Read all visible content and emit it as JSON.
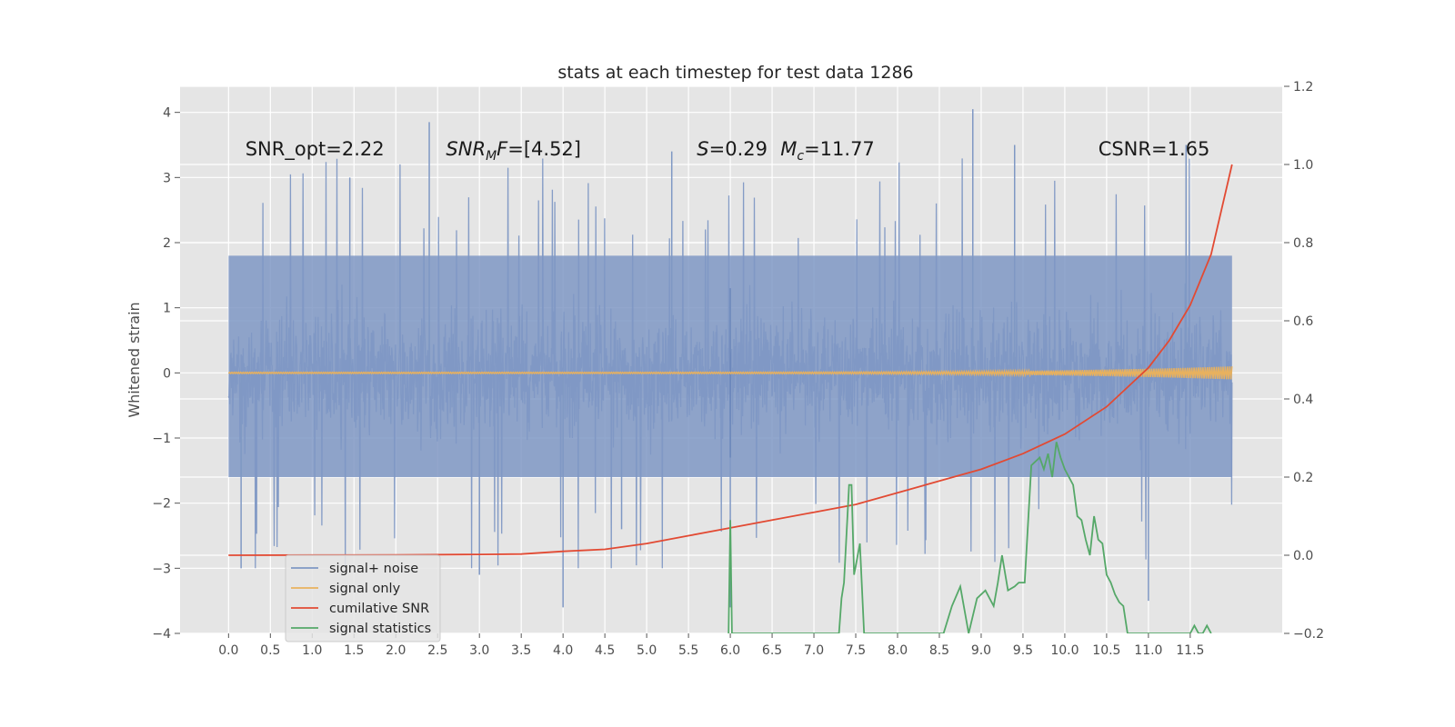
{
  "chart_data": {
    "type": "line",
    "title": "stats at each timestep for test data 1286",
    "xlabel": "",
    "ylabel": "Whitened strain",
    "xlim": [
      -0.58,
      12.6
    ],
    "ylim": [
      -4,
      4.4
    ],
    "y2lim": [
      -0.2,
      1.2
    ],
    "xticks": [
      0.0,
      0.5,
      1.0,
      1.5,
      2.0,
      2.5,
      3.0,
      3.5,
      4.0,
      4.5,
      5.0,
      5.5,
      6.0,
      6.5,
      7.0,
      7.5,
      8.0,
      8.5,
      9.0,
      9.5,
      10.0,
      10.5,
      11.0,
      11.5
    ],
    "xtick_labels": [
      "0.0",
      "0.5",
      "1.0",
      "1.5",
      "2.0",
      "2.5",
      "3.0",
      "3.5",
      "4.0",
      "4.5",
      "5.0",
      "5.5",
      "6.0",
      "6.5",
      "7.0",
      "7.5",
      "8.0",
      "8.5",
      "9.0",
      "9.5",
      "10.0",
      "10.5",
      "11.0",
      "11.5"
    ],
    "yticks": [
      -4,
      -3,
      -2,
      -1,
      0,
      1,
      2,
      3,
      4
    ],
    "ytick_labels": [
      "−4",
      "−3",
      "−2",
      "−1",
      "0",
      "1",
      "2",
      "3",
      "4"
    ],
    "y2ticks": [
      -0.2,
      0.0,
      0.2,
      0.4,
      0.6,
      0.8,
      1.0,
      1.2
    ],
    "y2tick_labels": [
      "−0.2",
      "0.0",
      "0.2",
      "0.4",
      "0.6",
      "0.8",
      "1.0",
      "1.2"
    ],
    "grid": true,
    "legend_position": "lower-left",
    "annotations": [
      {
        "text": "SNR_opt=2.22",
        "x": 0.2,
        "y": 3.3
      },
      {
        "text": "SNR_MF=[4.52]",
        "x": 2.6,
        "y": 3.3
      },
      {
        "text": "S=0.29",
        "x": 5.6,
        "y": 3.3
      },
      {
        "text": "M_c=11.77",
        "x": 6.6,
        "y": 3.3
      },
      {
        "text": "CSNR=1.65",
        "x": 10.4,
        "y": 3.3
      }
    ],
    "series": [
      {
        "name": "signal+ noise",
        "axis": "left",
        "color": "#7f98c4",
        "style": "noise band",
        "x_range": [
          0.0,
          12.0
        ],
        "typical_upper": 1.8,
        "typical_lower": -1.6,
        "spikes": [
          [
            2.4,
            3.85
          ],
          [
            8.9,
            4.05
          ],
          [
            11.45,
            3.5
          ],
          [
            5.3,
            3.4
          ],
          [
            9.4,
            3.5
          ],
          [
            1.45,
            3.0
          ],
          [
            4.7,
            -2.4
          ],
          [
            4.0,
            -3.6
          ],
          [
            6.0,
            -3.6
          ],
          [
            11.0,
            -3.5
          ],
          [
            3.0,
            -3.1
          ],
          [
            0.15,
            -3.0
          ]
        ]
      },
      {
        "name": "signal only",
        "axis": "left",
        "color": "#e8b15e",
        "style": "chirp",
        "x_range": [
          0.0,
          12.0
        ],
        "amplitude_start": 0.01,
        "amplitude_end": 0.1
      },
      {
        "name": "cumilative SNR",
        "axis": "right",
        "color": "#e24a33",
        "x": [
          0.0,
          1.0,
          2.0,
          3.0,
          3.5,
          4.0,
          4.5,
          5.0,
          5.5,
          6.0,
          6.5,
          7.0,
          7.5,
          8.0,
          8.5,
          9.0,
          9.5,
          10.0,
          10.5,
          11.0,
          11.25,
          11.5,
          11.75,
          12.0
        ],
        "values": [
          0.0,
          0.0005,
          0.001,
          0.002,
          0.003,
          0.01,
          0.015,
          0.03,
          0.05,
          0.07,
          0.09,
          0.11,
          0.13,
          0.16,
          0.19,
          0.22,
          0.26,
          0.31,
          0.38,
          0.48,
          0.55,
          0.64,
          0.77,
          1.0
        ]
      },
      {
        "name": "signal statistics",
        "axis": "right",
        "color": "#55a868",
        "x": [
          5.98,
          6.0,
          6.02,
          7.3,
          7.33,
          7.36,
          7.42,
          7.45,
          7.48,
          7.55,
          7.6,
          7.65,
          8.55,
          8.65,
          8.75,
          8.85,
          8.95,
          9.05,
          9.15,
          9.2,
          9.25,
          9.32,
          9.4,
          9.45,
          9.52,
          9.6,
          9.7,
          9.75,
          9.8,
          9.85,
          9.9,
          9.95,
          10.0,
          10.05,
          10.1,
          10.15,
          10.2,
          10.25,
          10.3,
          10.35,
          10.4,
          10.45,
          10.5,
          10.55,
          10.6,
          10.65,
          10.7,
          10.75,
          10.8,
          10.85,
          10.9,
          10.95,
          11.0,
          11.05,
          11.1,
          11.5,
          11.55,
          11.6,
          11.65,
          11.7,
          11.75
        ],
        "values": [
          -0.2,
          0.09,
          -0.2,
          -0.2,
          -0.11,
          -0.07,
          0.18,
          0.18,
          -0.05,
          0.03,
          -0.2,
          -0.2,
          -0.2,
          -0.13,
          -0.08,
          -0.2,
          -0.11,
          -0.09,
          -0.13,
          -0.07,
          0.0,
          -0.09,
          -0.08,
          -0.07,
          -0.07,
          0.23,
          0.25,
          0.22,
          0.26,
          0.2,
          0.29,
          0.25,
          0.22,
          0.2,
          0.18,
          0.1,
          0.09,
          0.04,
          0.0,
          0.1,
          0.04,
          0.03,
          -0.05,
          -0.07,
          -0.1,
          -0.12,
          -0.13,
          -0.2,
          -0.2,
          -0.2,
          -0.2,
          -0.2,
          -0.2,
          -0.2,
          -0.2,
          -0.2,
          -0.18,
          -0.2,
          -0.2,
          -0.18,
          -0.2
        ]
      }
    ]
  }
}
